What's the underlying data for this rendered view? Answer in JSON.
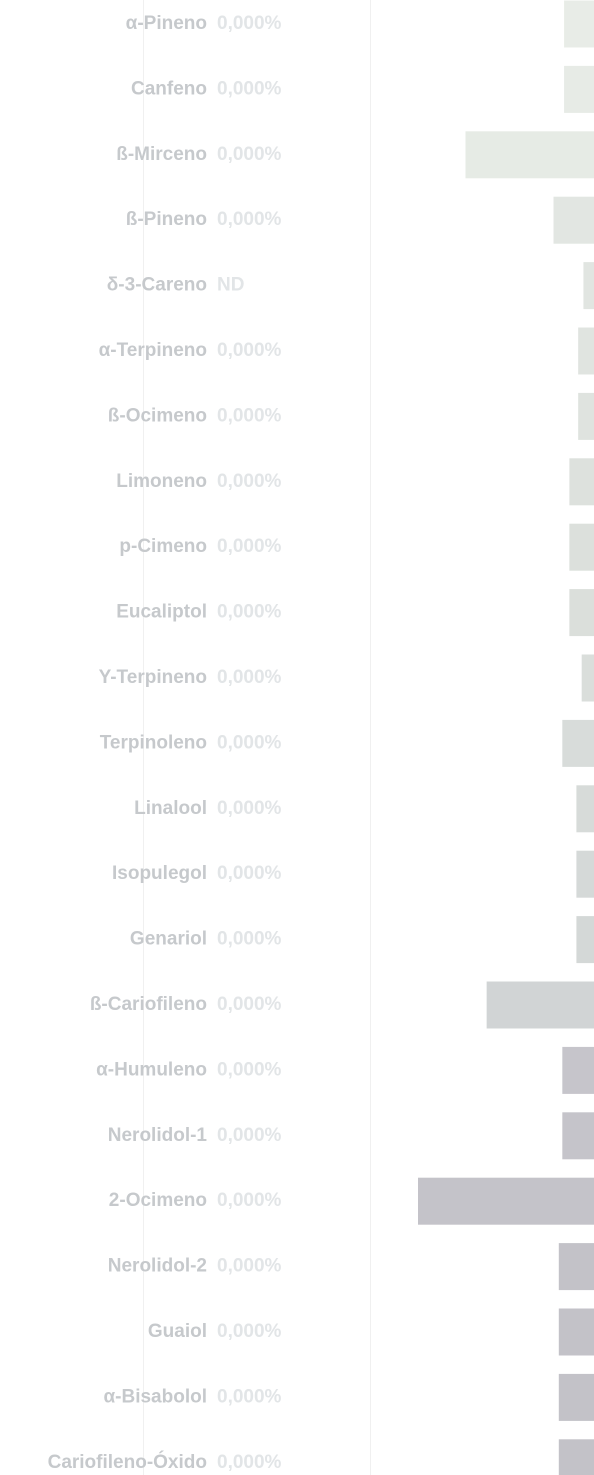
{
  "rows": [
    {
      "name": "α-Pineno",
      "value": "0,000%",
      "bar": 17,
      "color": "#e8ece7"
    },
    {
      "name": "Canfeno",
      "value": "0,000%",
      "bar": 17,
      "color": "#e7ebe6"
    },
    {
      "name": "ß-Mirceno",
      "value": "0,000%",
      "bar": 73,
      "color": "#e6ebe5"
    },
    {
      "name": "ß-Pineno",
      "value": "0,000%",
      "bar": 23,
      "color": "#e2e6e2"
    },
    {
      "name": "δ-3-Careno",
      "value": "ND",
      "bar": 6,
      "color": "#e1e5e1"
    },
    {
      "name": "α-Terpineno",
      "value": "0,000%",
      "bar": 9,
      "color": "#e0e4e0"
    },
    {
      "name": "ß-Ocimeno",
      "value": "0,000%",
      "bar": 9,
      "color": "#dfe3df"
    },
    {
      "name": "Limoneno",
      "value": "0,000%",
      "bar": 14,
      "color": "#dde1dd"
    },
    {
      "name": "p-Cimeno",
      "value": "0,000%",
      "bar": 14,
      "color": "#dce0dc"
    },
    {
      "name": "Eucaliptol",
      "value": "0,000%",
      "bar": 14,
      "color": "#dbdfdb"
    },
    {
      "name": "Υ-Terpineno",
      "value": "0,000%",
      "bar": 7,
      "color": "#dadedb"
    },
    {
      "name": "Terpinoleno",
      "value": "0,000%",
      "bar": 18,
      "color": "#d8dcda"
    },
    {
      "name": "Linalool",
      "value": "0,000%",
      "bar": 10,
      "color": "#d7dbd9"
    },
    {
      "name": "Isopulegol",
      "value": "0,000%",
      "bar": 10,
      "color": "#d5d9d8"
    },
    {
      "name": "Genariol",
      "value": "0,000%",
      "bar": 10,
      "color": "#d4d8d7"
    },
    {
      "name": "ß-Cariofileno",
      "value": "0,000%",
      "bar": 61,
      "color": "#d1d4d5"
    },
    {
      "name": "α-Humuleno",
      "value": "0,000%",
      "bar": 18,
      "color": "#c6c5cb"
    },
    {
      "name": "Nerolidol-1",
      "value": "0,000%",
      "bar": 18,
      "color": "#c5c4ca"
    },
    {
      "name": "2-Ocimeno",
      "value": "0,000%",
      "bar": 100,
      "color": "#c4c3c9"
    },
    {
      "name": "Nerolidol-2",
      "value": "0,000%",
      "bar": 20,
      "color": "#c3c2c8"
    },
    {
      "name": "Guaiol",
      "value": "0,000%",
      "bar": 20,
      "color": "#c3c2c8"
    },
    {
      "name": "α-Bisabolol",
      "value": "0,000%",
      "bar": 20,
      "color": "#c3c2c8"
    },
    {
      "name": "Cariofileno-Óxido",
      "value": "0,000%",
      "bar": 20,
      "color": "#c3c2c8"
    }
  ]
}
